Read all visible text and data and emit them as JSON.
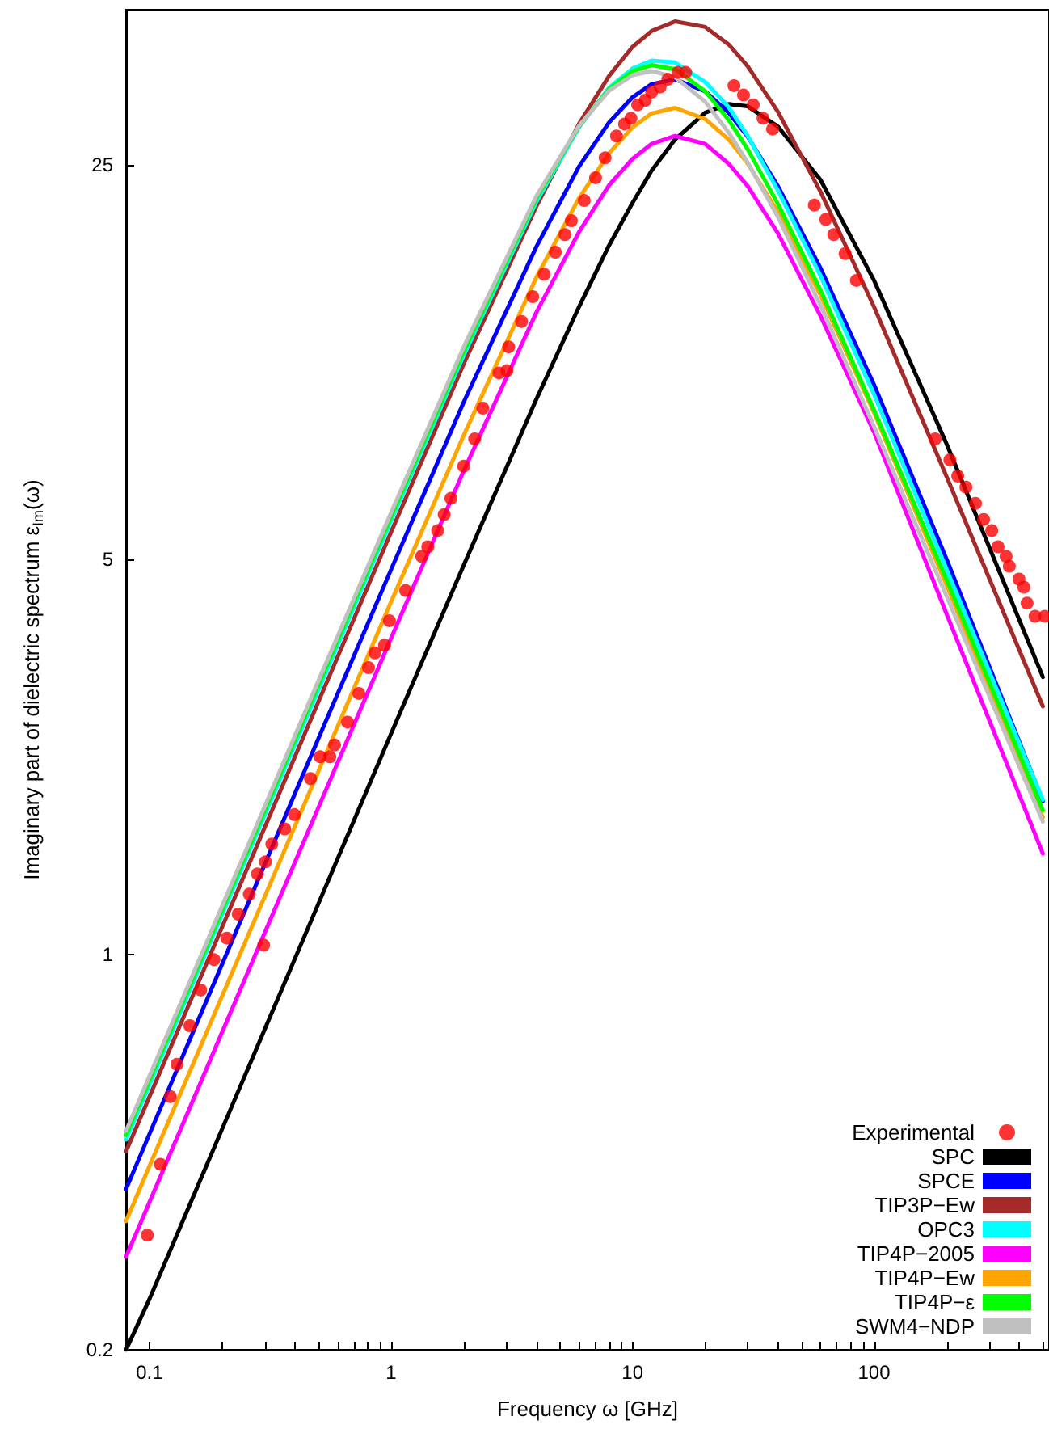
{
  "chart_data": {
    "type": "line",
    "xlabel": "Frequency ω [GHz]",
    "ylabel": "Imaginary part of dielectric spectrum ε$_{Im}$(ω)",
    "log": "xy",
    "legend": "bottom right",
    "xlim": [
      0.08,
      530
    ],
    "ylim": [
      0.2,
      47
    ],
    "xticks": [
      0.1,
      {
        "value": 0.2,
        "label": null
      },
      {
        "value": 0.3,
        "label": null
      },
      {
        "value": 0.4,
        "label": null
      },
      {
        "value": 0.5,
        "label": null
      },
      {
        "value": 0.6,
        "label": null
      },
      {
        "value": 0.7,
        "label": null
      },
      {
        "value": 0.8,
        "label": null
      },
      {
        "value": 0.9,
        "label": null
      },
      1,
      {
        "value": 2,
        "label": null
      },
      {
        "value": 3,
        "label": null
      },
      {
        "value": 4,
        "label": null
      },
      {
        "value": 5,
        "label": null
      },
      {
        "value": 6,
        "label": null
      },
      {
        "value": 7,
        "label": null
      },
      {
        "value": 8,
        "label": null
      },
      {
        "value": 9,
        "label": null
      },
      10,
      {
        "value": 20,
        "label": null
      },
      {
        "value": 30,
        "label": null
      },
      {
        "value": 40,
        "label": null
      },
      {
        "value": 50,
        "label": null
      },
      {
        "value": 60,
        "label": null
      },
      {
        "value": 70,
        "label": null
      },
      {
        "value": 80,
        "label": null
      },
      {
        "value": 90,
        "label": null
      },
      100,
      {
        "value": 200,
        "label": null
      },
      {
        "value": 300,
        "label": null
      },
      {
        "value": 400,
        "label": null
      },
      {
        "value": 500,
        "label": null
      }
    ],
    "yticks": [
      0.2,
      1,
      5,
      25
    ],
    "x": [
      0.08,
      0.1,
      0.2,
      0.5,
      1,
      2,
      4,
      6,
      8,
      10,
      12,
      15,
      20,
      25,
      30,
      40,
      60,
      100,
      200,
      500
    ],
    "series": [
      {
        "name": "Experimental",
        "type": "scatter",
        "marker": "circle",
        "color": "#ff0000",
        "x": [
          0.098,
          0.111,
          0.122,
          0.13,
          0.147,
          0.163,
          0.185,
          0.209,
          0.233,
          0.259,
          0.28,
          0.297,
          0.302,
          0.321,
          0.363,
          0.398,
          0.464,
          0.509,
          0.558,
          0.584,
          0.661,
          0.736,
          0.807,
          0.858,
          0.94,
          0.985,
          1.15,
          1.34,
          1.42,
          1.56,
          1.66,
          1.77,
          2.0,
          2.22,
          2.4,
          2.8,
          3.02,
          3.07,
          3.47,
          3.86,
          4.3,
          4.79,
          5.25,
          5.58,
          6.31,
          7.03,
          7.7,
          8.58,
          9.27,
          9.85,
          10.5,
          11.3,
          12.0,
          13.0,
          14.0,
          15.4,
          16.6,
          26.3,
          28.8,
          31.6,
          34.7,
          38.0,
          56.6,
          63.1,
          68.1,
          75.9,
          84.5,
          179,
          206,
          222,
          240,
          263,
          284,
          307,
          326,
          352,
          363,
          398,
          417,
          430,
          464,
          509
        ],
        "values": [
          0.319,
          0.426,
          0.561,
          0.64,
          0.749,
          0.866,
          0.98,
          1.07,
          1.18,
          1.28,
          1.39,
          1.04,
          1.46,
          1.57,
          1.67,
          1.77,
          2.05,
          2.24,
          2.24,
          2.35,
          2.58,
          2.9,
          3.22,
          3.42,
          3.53,
          3.9,
          4.41,
          5.07,
          5.27,
          5.63,
          6.01,
          6.42,
          7.32,
          8.18,
          9.27,
          10.7,
          10.8,
          11.9,
          13.2,
          14.6,
          16.0,
          17.5,
          18.8,
          19.9,
          21.6,
          23.7,
          25.7,
          28.1,
          29.5,
          30.2,
          31.9,
          32.5,
          33.6,
          34.3,
          35.4,
          36.4,
          36.4,
          34.5,
          33.2,
          31.9,
          30.2,
          28.9,
          21.2,
          20.0,
          18.8,
          17.4,
          15.6,
          8.18,
          7.51,
          7.03,
          6.72,
          6.29,
          5.89,
          5.63,
          5.27,
          5.07,
          4.87,
          4.62,
          4.47,
          4.19,
          3.97,
          3.97
        ]
      },
      {
        "name": "SPC",
        "color": "#000000",
        "values": [
          0.2,
          0.246,
          0.492,
          1.23,
          2.46,
          4.89,
          9.62,
          14.0,
          18.0,
          21.4,
          24.4,
          27.7,
          30.9,
          32.0,
          31.7,
          29.2,
          23.5,
          15.6,
          8.0,
          3.1
        ]
      },
      {
        "name": "SPCE",
        "color": "#0000ff",
        "values": [
          0.385,
          0.482,
          0.963,
          2.41,
          4.8,
          9.5,
          17.9,
          24.8,
          29.7,
          32.9,
          34.7,
          35.4,
          33.7,
          30.9,
          28.0,
          22.9,
          16.4,
          10.2,
          5.0,
          1.87
        ]
      },
      {
        "name": "TIP3P−Ew",
        "color": "#a52a2a",
        "values": [
          0.449,
          0.561,
          1.12,
          2.8,
          5.59,
          11.1,
          21.1,
          29.5,
          35.9,
          40.4,
          43.1,
          44.8,
          43.8,
          40.8,
          37.3,
          31.0,
          22.4,
          14.0,
          7.0,
          2.75
        ]
      },
      {
        "name": "OPC3",
        "color": "#00ffff",
        "values": [
          0.471,
          0.589,
          1.18,
          2.94,
          5.86,
          11.5,
          21.5,
          29.1,
          34.2,
          37.0,
          38.2,
          37.9,
          35.0,
          31.6,
          28.1,
          22.5,
          15.9,
          9.8,
          4.8,
          1.88
        ]
      },
      {
        "name": "TIP4P−2005",
        "color": "#ff00ff",
        "values": [
          0.292,
          0.365,
          0.73,
          1.82,
          3.63,
          7.18,
          13.7,
          19.0,
          23.0,
          25.6,
          27.2,
          28.1,
          27.2,
          25.1,
          22.9,
          18.9,
          13.5,
          8.4,
          4.0,
          1.51
        ]
      },
      {
        "name": "TIP4P−Ew",
        "color": "#ffa500",
        "values": [
          0.338,
          0.423,
          0.846,
          2.11,
          4.21,
          8.3,
          15.8,
          21.8,
          26.2,
          29.1,
          30.8,
          31.5,
          30.1,
          27.7,
          25.1,
          20.6,
          14.7,
          9.1,
          4.5,
          1.75
        ]
      },
      {
        "name": "TIP4P−ε",
        "color": "#00ff00",
        "values": [
          0.48,
          0.6,
          1.2,
          3.0,
          5.96,
          11.7,
          21.8,
          29.2,
          34.0,
          36.6,
          37.5,
          36.9,
          33.7,
          30.0,
          26.6,
          21.3,
          15.0,
          9.2,
          4.6,
          1.8
        ]
      },
      {
        "name": "SWM4−NDP",
        "color": "#c0c0c0",
        "values": [
          0.488,
          0.61,
          1.22,
          3.05,
          6.05,
          11.9,
          22.0,
          29.3,
          33.8,
          36.0,
          36.6,
          35.7,
          32.3,
          28.5,
          25.2,
          20.2,
          14.1,
          8.6,
          4.3,
          1.72
        ]
      }
    ]
  }
}
